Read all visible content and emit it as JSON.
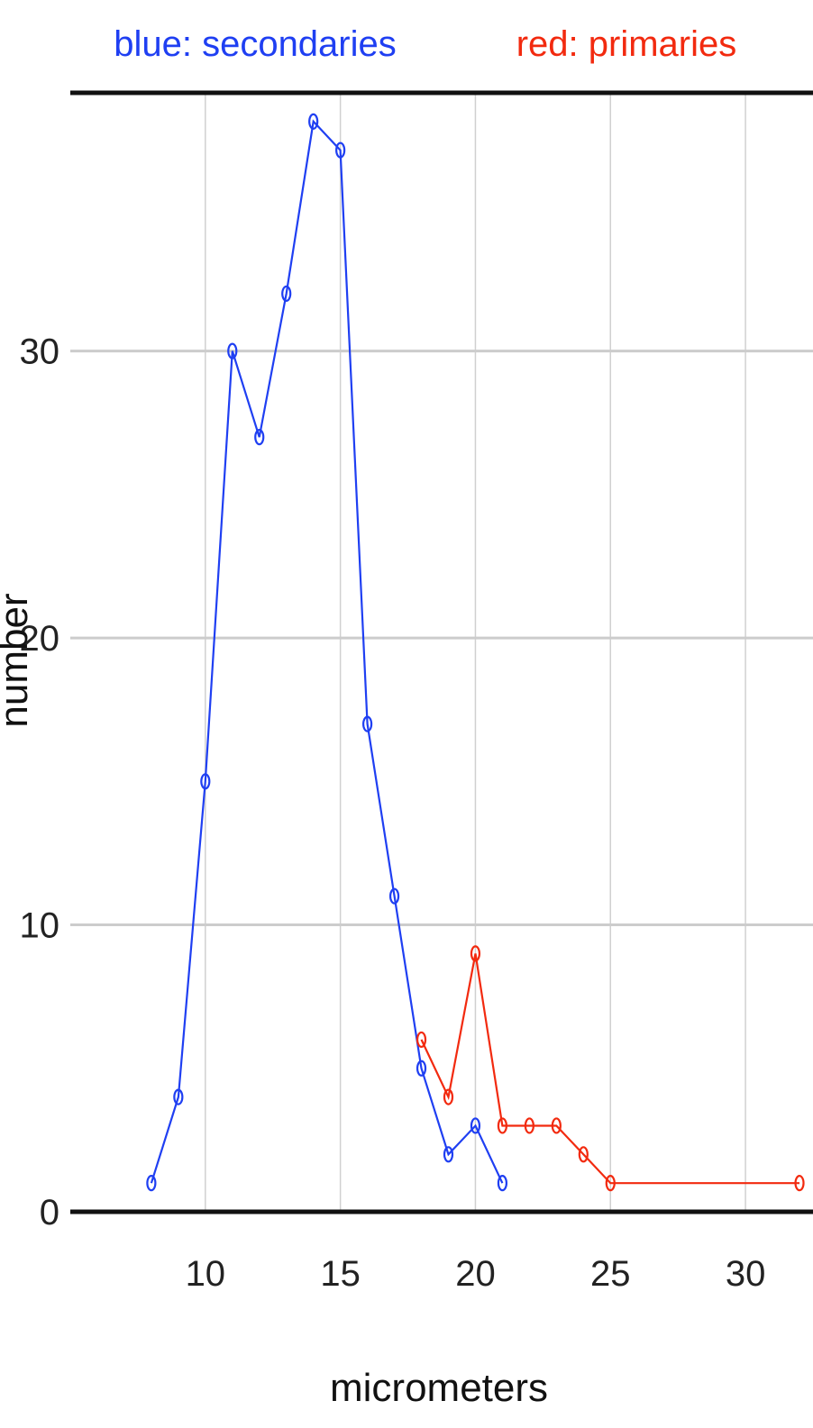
{
  "chart_data": {
    "type": "line",
    "title": "",
    "xlabel": "micrometers",
    "ylabel": "number",
    "xlim": [
      5,
      32.5
    ],
    "ylim": [
      0,
      39
    ],
    "x_ticks": [
      "10",
      "15",
      "20",
      "25",
      "30"
    ],
    "y_ticks": [
      "0",
      "10",
      "20",
      "30"
    ],
    "grid": true,
    "legend": {
      "placement": "top",
      "entries": [
        "blue: secondaries",
        "red: primaries"
      ]
    },
    "series": [
      {
        "name": "blue: secondaries",
        "color": "#1f3ff2",
        "x": [
          8,
          9,
          10,
          11,
          12,
          13,
          14,
          15,
          16,
          17,
          18,
          19,
          20,
          21
        ],
        "y": [
          1,
          4,
          15,
          30,
          27,
          32,
          38,
          37,
          17,
          11,
          5,
          2,
          3,
          1
        ]
      },
      {
        "name": "red: primaries",
        "color": "#f22a0f",
        "x": [
          18,
          19,
          20,
          21,
          22,
          23,
          24,
          25,
          32
        ],
        "y": [
          6,
          4,
          9,
          3,
          3,
          3,
          2,
          1,
          1
        ]
      }
    ]
  }
}
